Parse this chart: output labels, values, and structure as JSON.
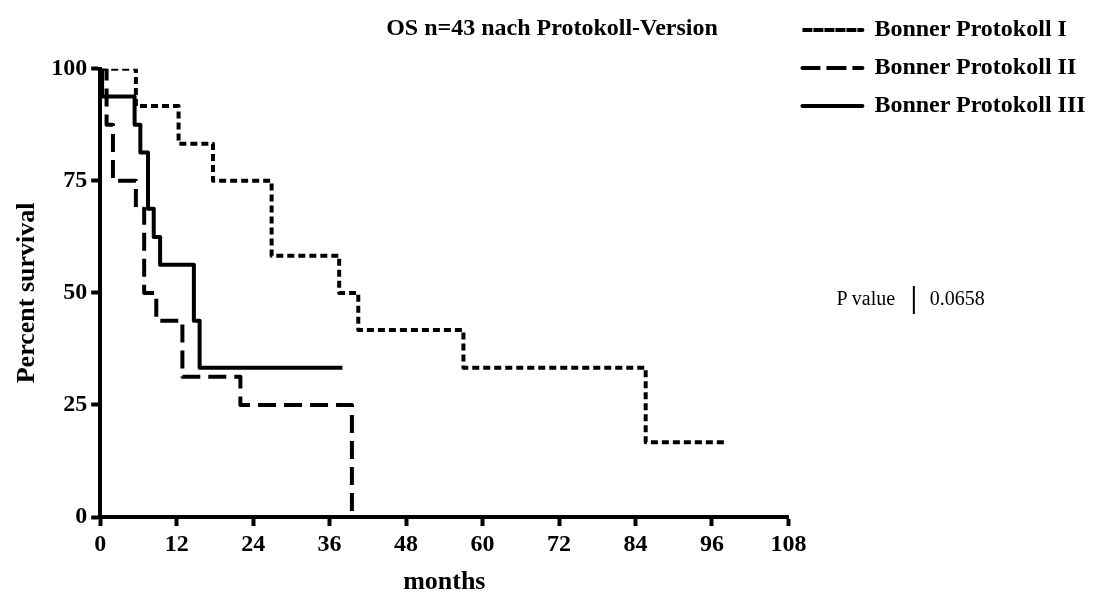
{
  "chart_data": {
    "type": "step",
    "title": "OS n=43 nach Protokoll-Version",
    "xlabel": "months",
    "ylabel": "Percent survival",
    "xlim": [
      0,
      108
    ],
    "xticks": [
      0,
      12,
      24,
      36,
      48,
      60,
      72,
      84,
      96,
      108
    ],
    "ylim": [
      0,
      100
    ],
    "yticks": [
      0,
      25,
      50,
      75,
      100
    ],
    "grid": false,
    "legend": "top right",
    "marker": "none",
    "series": [
      {
        "name": "Bonner Protokoll I",
        "color": "#000000",
        "line_style": "dotted",
        "x": [
          0,
          5.6,
          12.3,
          17.7,
          26.9,
          37.5,
          40.5,
          57,
          85.6,
          98.5
        ],
        "values": [
          100,
          91.7,
          83.3,
          75,
          58.3,
          50,
          41.7,
          33.3,
          16.7,
          16.7
        ]
      },
      {
        "name": "Bonner Protokoll II",
        "color": "#000000",
        "line_style": "dashed",
        "x": [
          0,
          1,
          2,
          5.6,
          6.9,
          8.8,
          12.9,
          22,
          39.5
        ],
        "values": [
          100,
          87.5,
          75,
          68.8,
          50,
          43.8,
          31.3,
          25,
          0
        ]
      },
      {
        "name": "Bonner Protokoll III",
        "color": "#000000",
        "line_style": "solid",
        "x": [
          0,
          0.3,
          5.4,
          6.3,
          7.5,
          8.4,
          9.4,
          14.7,
          15.6,
          38
        ],
        "values": [
          100,
          93.8,
          87.5,
          81.3,
          68.8,
          62.5,
          56.3,
          43.8,
          33.3,
          33.3
        ]
      }
    ],
    "annotations": [
      "P value",
      "0.0658"
    ]
  }
}
